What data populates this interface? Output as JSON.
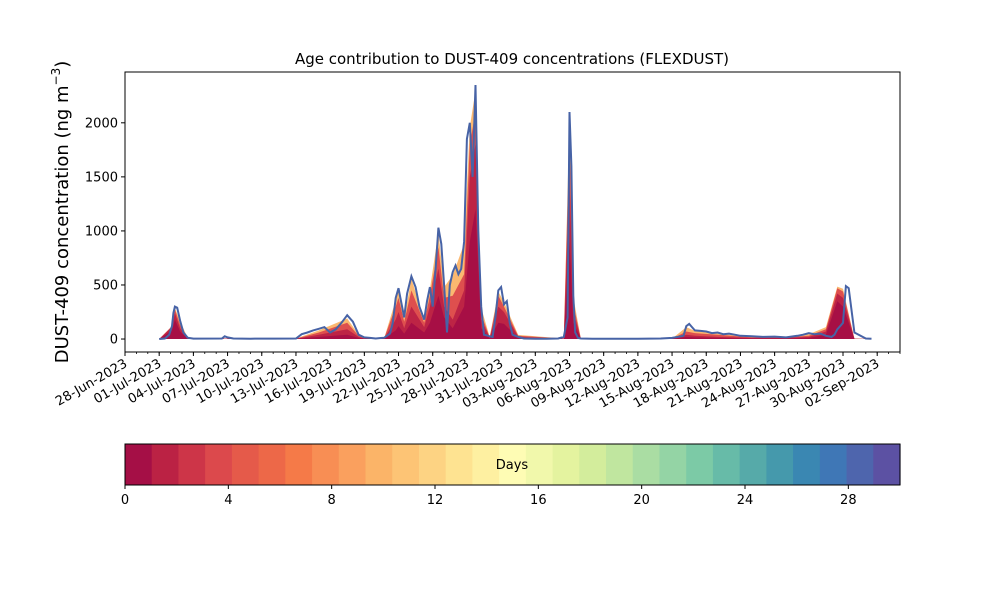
{
  "chart_data": {
    "type": "area",
    "title": "Age contribution to DUST-409 concentrations (FLEXDUST)",
    "ylabel": "DUST-409 concentration (ng m",
    "ylabel_superscript": "−3",
    "ylabel_suffix": ")",
    "xlabel": "",
    "ylim": [
      -120,
      2470
    ],
    "yticks": [
      0,
      500,
      1000,
      1500,
      2000
    ],
    "ytick_labels": [
      "0",
      "500",
      "1000",
      "1500",
      "2000"
    ],
    "xlim": [
      "2023-06-28",
      "2023-09-04"
    ],
    "xticks": [
      "2023-06-28",
      "2023-07-01",
      "2023-07-04",
      "2023-07-07",
      "2023-07-10",
      "2023-07-13",
      "2023-07-16",
      "2023-07-19",
      "2023-07-22",
      "2023-07-25",
      "2023-07-28",
      "2023-07-31",
      "2023-08-03",
      "2023-08-06",
      "2023-08-09",
      "2023-08-12",
      "2023-08-15",
      "2023-08-18",
      "2023-08-21",
      "2023-08-24",
      "2023-08-27",
      "2023-08-30",
      "2023-09-02"
    ],
    "xtick_labels": [
      "28-Jun-2023",
      "01-Jul-2023",
      "04-Jul-2023",
      "07-Jul-2023",
      "10-Jul-2023",
      "13-Jul-2023",
      "16-Jul-2023",
      "19-Jul-2023",
      "22-Jul-2023",
      "25-Jul-2023",
      "28-Jul-2023",
      "31-Jul-2023",
      "03-Aug-2023",
      "06-Aug-2023",
      "09-Aug-2023",
      "12-Aug-2023",
      "15-Aug-2023",
      "18-Aug-2023",
      "21-Aug-2023",
      "24-Aug-2023",
      "27-Aug-2023",
      "30-Aug-2023",
      "02-Sep-2023"
    ],
    "total_series": {
      "x": [
        "2023-07-01",
        "2023-07-01 12:00",
        "2023-07-01 21:00",
        "2023-07-02 03:00",
        "2023-07-02 06:00",
        "2023-07-02 09:00",
        "2023-07-02 14:00",
        "2023-07-02 20:00",
        "2023-07-03 03:00",
        "2023-07-03 12:00",
        "2023-07-04",
        "2023-07-06 12:00",
        "2023-07-06 18:00",
        "2023-07-07",
        "2023-07-07 12:00",
        "2023-07-09",
        "2023-07-11",
        "2023-07-13",
        "2023-07-13 12:00",
        "2023-07-14",
        "2023-07-14 12:00",
        "2023-07-15",
        "2023-07-15 12:00",
        "2023-07-16",
        "2023-07-16 12:00",
        "2023-07-17",
        "2023-07-17 12:00",
        "2023-07-18",
        "2023-07-18 12:00",
        "2023-07-19",
        "2023-07-19 12:00",
        "2023-07-20",
        "2023-07-20 18:00",
        "2023-07-21 06:00",
        "2023-07-21 12:00",
        "2023-07-21 18:00",
        "2023-07-22",
        "2023-07-22 12:00",
        "2023-07-22 18:00",
        "2023-07-23 03:00",
        "2023-07-23 12:00",
        "2023-07-23 20:00",
        "2023-07-24 06:00",
        "2023-07-24 12:00",
        "2023-07-24 18:00",
        "2023-07-25",
        "2023-07-25 06:00",
        "2023-07-25 12:00",
        "2023-07-25 18:00",
        "2023-07-26",
        "2023-07-26 06:00",
        "2023-07-26 12:00",
        "2023-07-26 18:00",
        "2023-07-27",
        "2023-07-27 06:00",
        "2023-07-27 12:00",
        "2023-07-27 18:00",
        "2023-07-28",
        "2023-07-28 06:00",
        "2023-07-28 12:00",
        "2023-07-28 18:00",
        "2023-07-29",
        "2023-07-29 06:00",
        "2023-07-29 12:00",
        "2023-07-30",
        "2023-07-30 06:00",
        "2023-07-30 12:00",
        "2023-07-30 18:00",
        "2023-07-31",
        "2023-07-31 06:00",
        "2023-07-31 12:00",
        "2023-07-31 18:00",
        "2023-08-01",
        "2023-08-01 12:00",
        "2023-08-02",
        "2023-08-03",
        "2023-08-04",
        "2023-08-05",
        "2023-08-05 12:00",
        "2023-08-05 20:00",
        "2023-08-06",
        "2023-08-06 04:00",
        "2023-08-06 08:00",
        "2023-08-06 12:00",
        "2023-08-06 18:00",
        "2023-08-07",
        "2023-08-08",
        "2023-08-10",
        "2023-08-12",
        "2023-08-14",
        "2023-08-15",
        "2023-08-16",
        "2023-08-16 06:00",
        "2023-08-16 12:00",
        "2023-08-16 18:00",
        "2023-08-17",
        "2023-08-17 12:00",
        "2023-08-18",
        "2023-08-18 12:00",
        "2023-08-19",
        "2023-08-19 12:00",
        "2023-08-20",
        "2023-08-20 12:00",
        "2023-08-21",
        "2023-08-22",
        "2023-08-23",
        "2023-08-24",
        "2023-08-25",
        "2023-08-26",
        "2023-08-26 12:00",
        "2023-08-27",
        "2023-08-27 12:00",
        "2023-08-28",
        "2023-08-28 12:00",
        "2023-08-29",
        "2023-08-29 06:00",
        "2023-08-29 12:00",
        "2023-08-29 18:00",
        "2023-08-30",
        "2023-08-30 06:00",
        "2023-08-30 12:00",
        "2023-08-31",
        "2023-09-01",
        "2023-09-01 12:00"
      ],
      "y": [
        0,
        5,
        40,
        120,
        240,
        300,
        290,
        170,
        60,
        12,
        4,
        5,
        25,
        15,
        5,
        3,
        4,
        5,
        45,
        60,
        80,
        95,
        110,
        60,
        90,
        150,
        220,
        160,
        40,
        15,
        10,
        5,
        12,
        50,
        150,
        380,
        470,
        200,
        420,
        580,
        480,
        300,
        180,
        350,
        480,
        300,
        650,
        1030,
        880,
        500,
        60,
        500,
        620,
        680,
        600,
        650,
        900,
        1850,
        2000,
        1500,
        2350,
        1000,
        300,
        40,
        25,
        20,
        200,
        450,
        480,
        320,
        350,
        150,
        40,
        20,
        5,
        3,
        3,
        5,
        20,
        200,
        2100,
        1600,
        400,
        60,
        10,
        5,
        3,
        3,
        3,
        5,
        10,
        30,
        120,
        140,
        110,
        80,
        75,
        70,
        55,
        60,
        45,
        50,
        40,
        30,
        25,
        20,
        22,
        15,
        30,
        40,
        55,
        45,
        50,
        30,
        20,
        40,
        90,
        120,
        150,
        490,
        470,
        60,
        5,
        2
      ]
    },
    "age_layers": {
      "x": [
        "2023-07-01",
        "2023-07-02 03:00",
        "2023-07-02 09:00",
        "2023-07-02 20:00",
        "2023-07-03 12:00",
        "2023-07-04",
        "2023-07-13",
        "2023-07-15",
        "2023-07-17 12:00",
        "2023-07-18 12:00",
        "2023-07-19",
        "2023-07-20 18:00",
        "2023-07-21 18:00",
        "2023-07-22",
        "2023-07-22 12:00",
        "2023-07-23 03:00",
        "2023-07-24 06:00",
        "2023-07-24 18:00",
        "2023-07-25 12:00",
        "2023-07-26",
        "2023-07-26 18:00",
        "2023-07-27 18:00",
        "2023-07-28 06:00",
        "2023-07-28 18:00",
        "2023-07-29 06:00",
        "2023-07-30",
        "2023-07-30 18:00",
        "2023-07-31 06:00",
        "2023-08-01 12:00",
        "2023-08-05 12:00",
        "2023-08-06",
        "2023-08-06 08:00",
        "2023-08-07",
        "2023-08-15",
        "2023-08-16 06:00",
        "2023-08-17",
        "2023-08-19",
        "2023-08-22",
        "2023-08-25",
        "2023-08-27",
        "2023-08-28 12:00",
        "2023-08-29 12:00",
        "2023-08-30",
        "2023-08-31",
        "2023-09-01 12:00"
      ],
      "layers": [
        {
          "days": 1,
          "y": [
            0,
            80,
            180,
            70,
            5,
            2,
            2,
            20,
            40,
            10,
            3,
            5,
            80,
            120,
            50,
            150,
            60,
            150,
            400,
            200,
            100,
            300,
            900,
            1200,
            100,
            5,
            150,
            140,
            10,
            3,
            900,
            150,
            1,
            1,
            20,
            15,
            10,
            5,
            5,
            10,
            40,
            350,
            300,
            1,
            0
          ]
        },
        {
          "days": 2,
          "y": [
            0,
            110,
            240,
            100,
            8,
            3,
            3,
            40,
            90,
            20,
            5,
            8,
            180,
            250,
            100,
            300,
            110,
            300,
            650,
            300,
            180,
            450,
            1500,
            1800,
            180,
            10,
            300,
            250,
            20,
            4,
            1500,
            250,
            2,
            2,
            40,
            30,
            20,
            10,
            10,
            20,
            70,
            420,
            380,
            2,
            0
          ]
        },
        {
          "days": 4,
          "y": [
            0,
            120,
            275,
            130,
            10,
            4,
            4,
            60,
            150,
            30,
            8,
            10,
            300,
            380,
            160,
            450,
            150,
            400,
            850,
            380,
            400,
            600,
            1800,
            2100,
            230,
            15,
            400,
            300,
            30,
            5,
            1900,
            320,
            3,
            3,
            70,
            55,
            40,
            15,
            15,
            30,
            90,
            470,
            440,
            3,
            0
          ]
        },
        {
          "days": 10,
          "y": [
            0,
            120,
            290,
            165,
            12,
            4,
            5,
            80,
            190,
            38,
            10,
            12,
            360,
            450,
            190,
            560,
            175,
            460,
            990,
            480,
            590,
            880,
            1960,
            2300,
            290,
            20,
            440,
            340,
            38,
            5,
            2060,
            390,
            3,
            4,
            110,
            75,
            50,
            20,
            20,
            45,
            110,
            485,
            465,
            4,
            0
          ]
        }
      ]
    },
    "colorbar": {
      "label": "Days",
      "vmin": 0,
      "vmax": 30,
      "ticks": [
        0,
        4,
        8,
        12,
        16,
        20,
        24,
        28
      ],
      "tick_labels": [
        "0",
        "4",
        "8",
        "12",
        "16",
        "20",
        "24",
        "28"
      ],
      "colors": [
        "#a50f46",
        "#bb2244",
        "#cd3548",
        "#dc494c",
        "#e55a4a",
        "#ed6848",
        "#f57a48",
        "#f88e54",
        "#faa05e",
        "#fbb468",
        "#fdc475",
        "#fdd383",
        "#fee391",
        "#fef0a1",
        "#fefcb4",
        "#f1f8ab",
        "#e4f39f",
        "#d3ed9c",
        "#c0e69f",
        "#aadda3",
        "#94d4a5",
        "#7ccaa6",
        "#67bba8",
        "#56aaa9",
        "#4599ac",
        "#3a87b2",
        "#3f77b6",
        "#4e65ad",
        "#5c51a3"
      ]
    },
    "total_line_color": "#4763a6",
    "grid": false,
    "legend": "none"
  }
}
